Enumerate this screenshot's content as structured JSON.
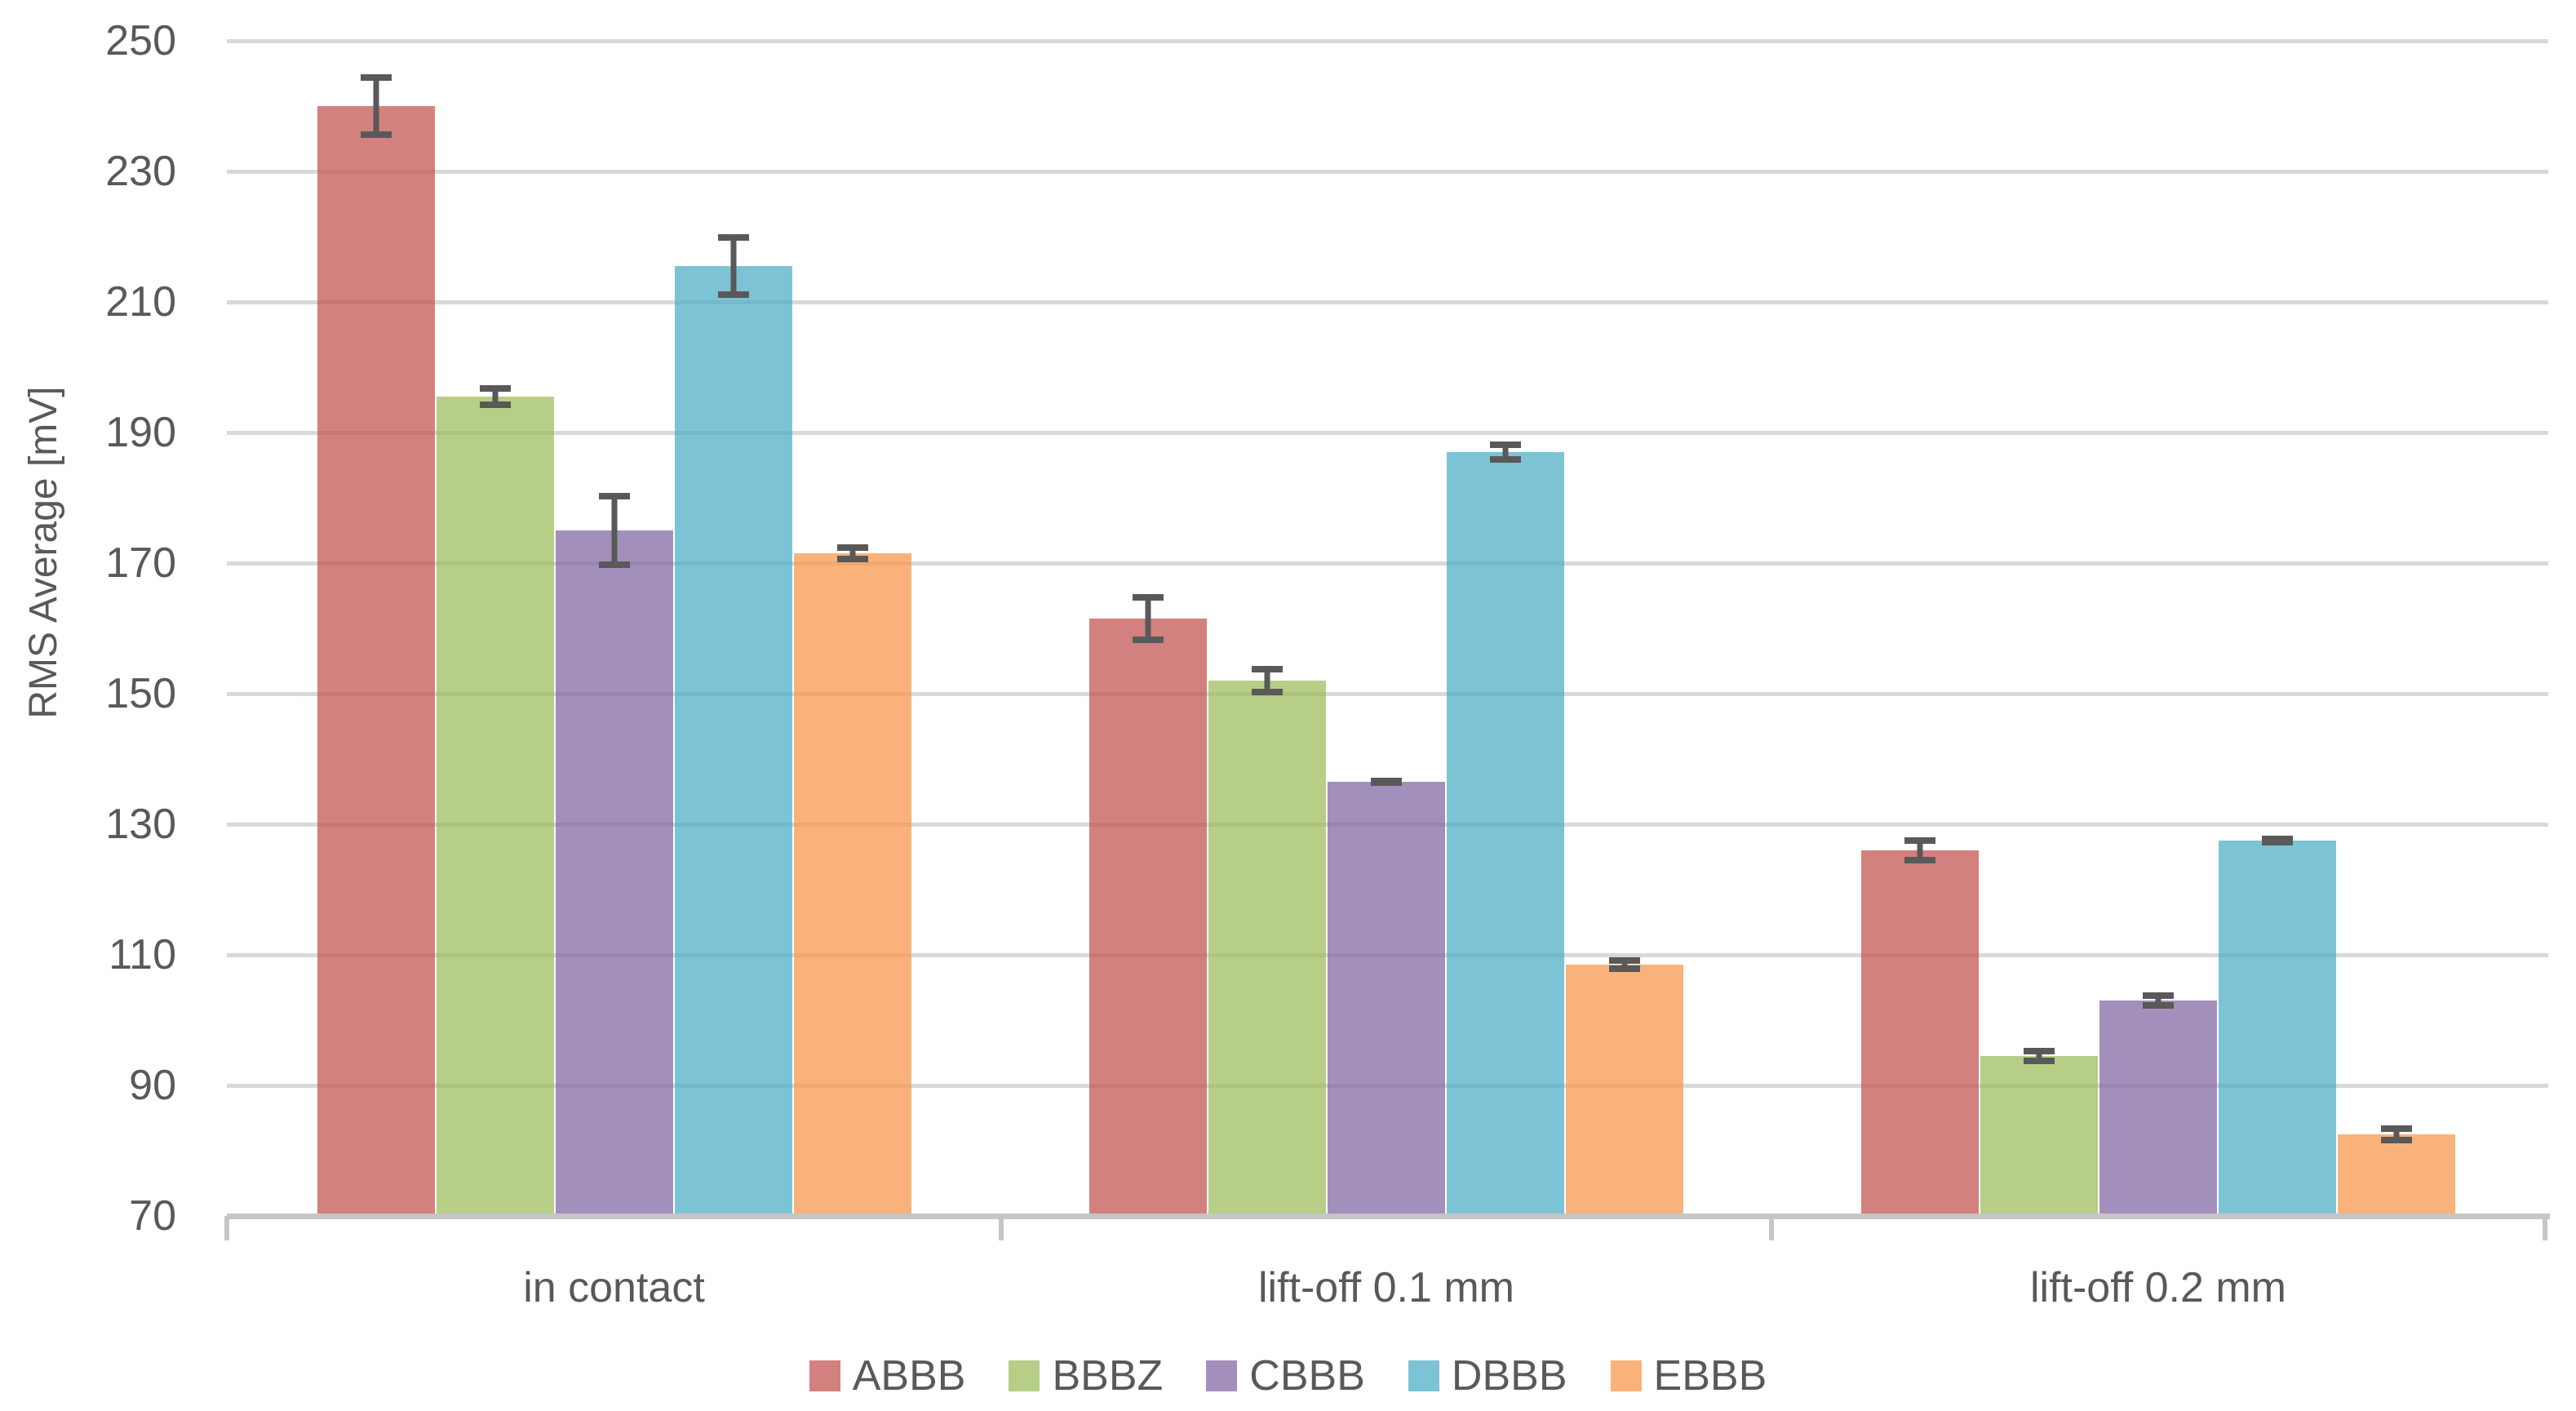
{
  "chart_data": {
    "type": "bar",
    "title": "",
    "xlabel": "",
    "ylabel": "RMS Average [mV]",
    "ylim": [
      70,
      250
    ],
    "ytick_step": 20,
    "yticks": [
      250,
      230,
      210,
      190,
      170,
      150,
      130,
      110,
      90,
      70
    ],
    "grid": "horizontal",
    "legend_position": "bottom",
    "error_bars": true,
    "categories": [
      "in contact",
      "lift-off 0.1 mm",
      "lift-off 0.2 mm"
    ],
    "series": [
      {
        "name": "ABBB",
        "color": "#C0504D",
        "values": [
          240.0,
          161.5,
          126.0
        ],
        "errors": [
          4.9,
          3.8,
          2.0
        ]
      },
      {
        "name": "BBBZ",
        "color": "#9BBB59",
        "values": [
          195.5,
          152.0,
          94.5
        ],
        "errors": [
          1.8,
          2.3,
          1.2
        ]
      },
      {
        "name": "CBBB",
        "color": "#8064A2",
        "values": [
          175.0,
          136.5,
          103.0
        ],
        "errors": [
          5.8,
          0.6,
          1.2
        ]
      },
      {
        "name": "DBBB",
        "color": "#4BACC6",
        "values": [
          215.5,
          187.0,
          127.5
        ],
        "errors": [
          4.9,
          1.6,
          0.7
        ]
      },
      {
        "name": "EBBB",
        "color": "#F79646",
        "values": [
          171.5,
          108.5,
          82.5
        ],
        "errors": [
          1.4,
          1.1,
          1.4
        ]
      }
    ]
  },
  "style": {
    "gridline_color": "#D9D9D9",
    "axis_color": "#C6C6C6",
    "error_bar_color": "#595959",
    "text_color": "#595959",
    "bar_opacity": 0.72
  }
}
